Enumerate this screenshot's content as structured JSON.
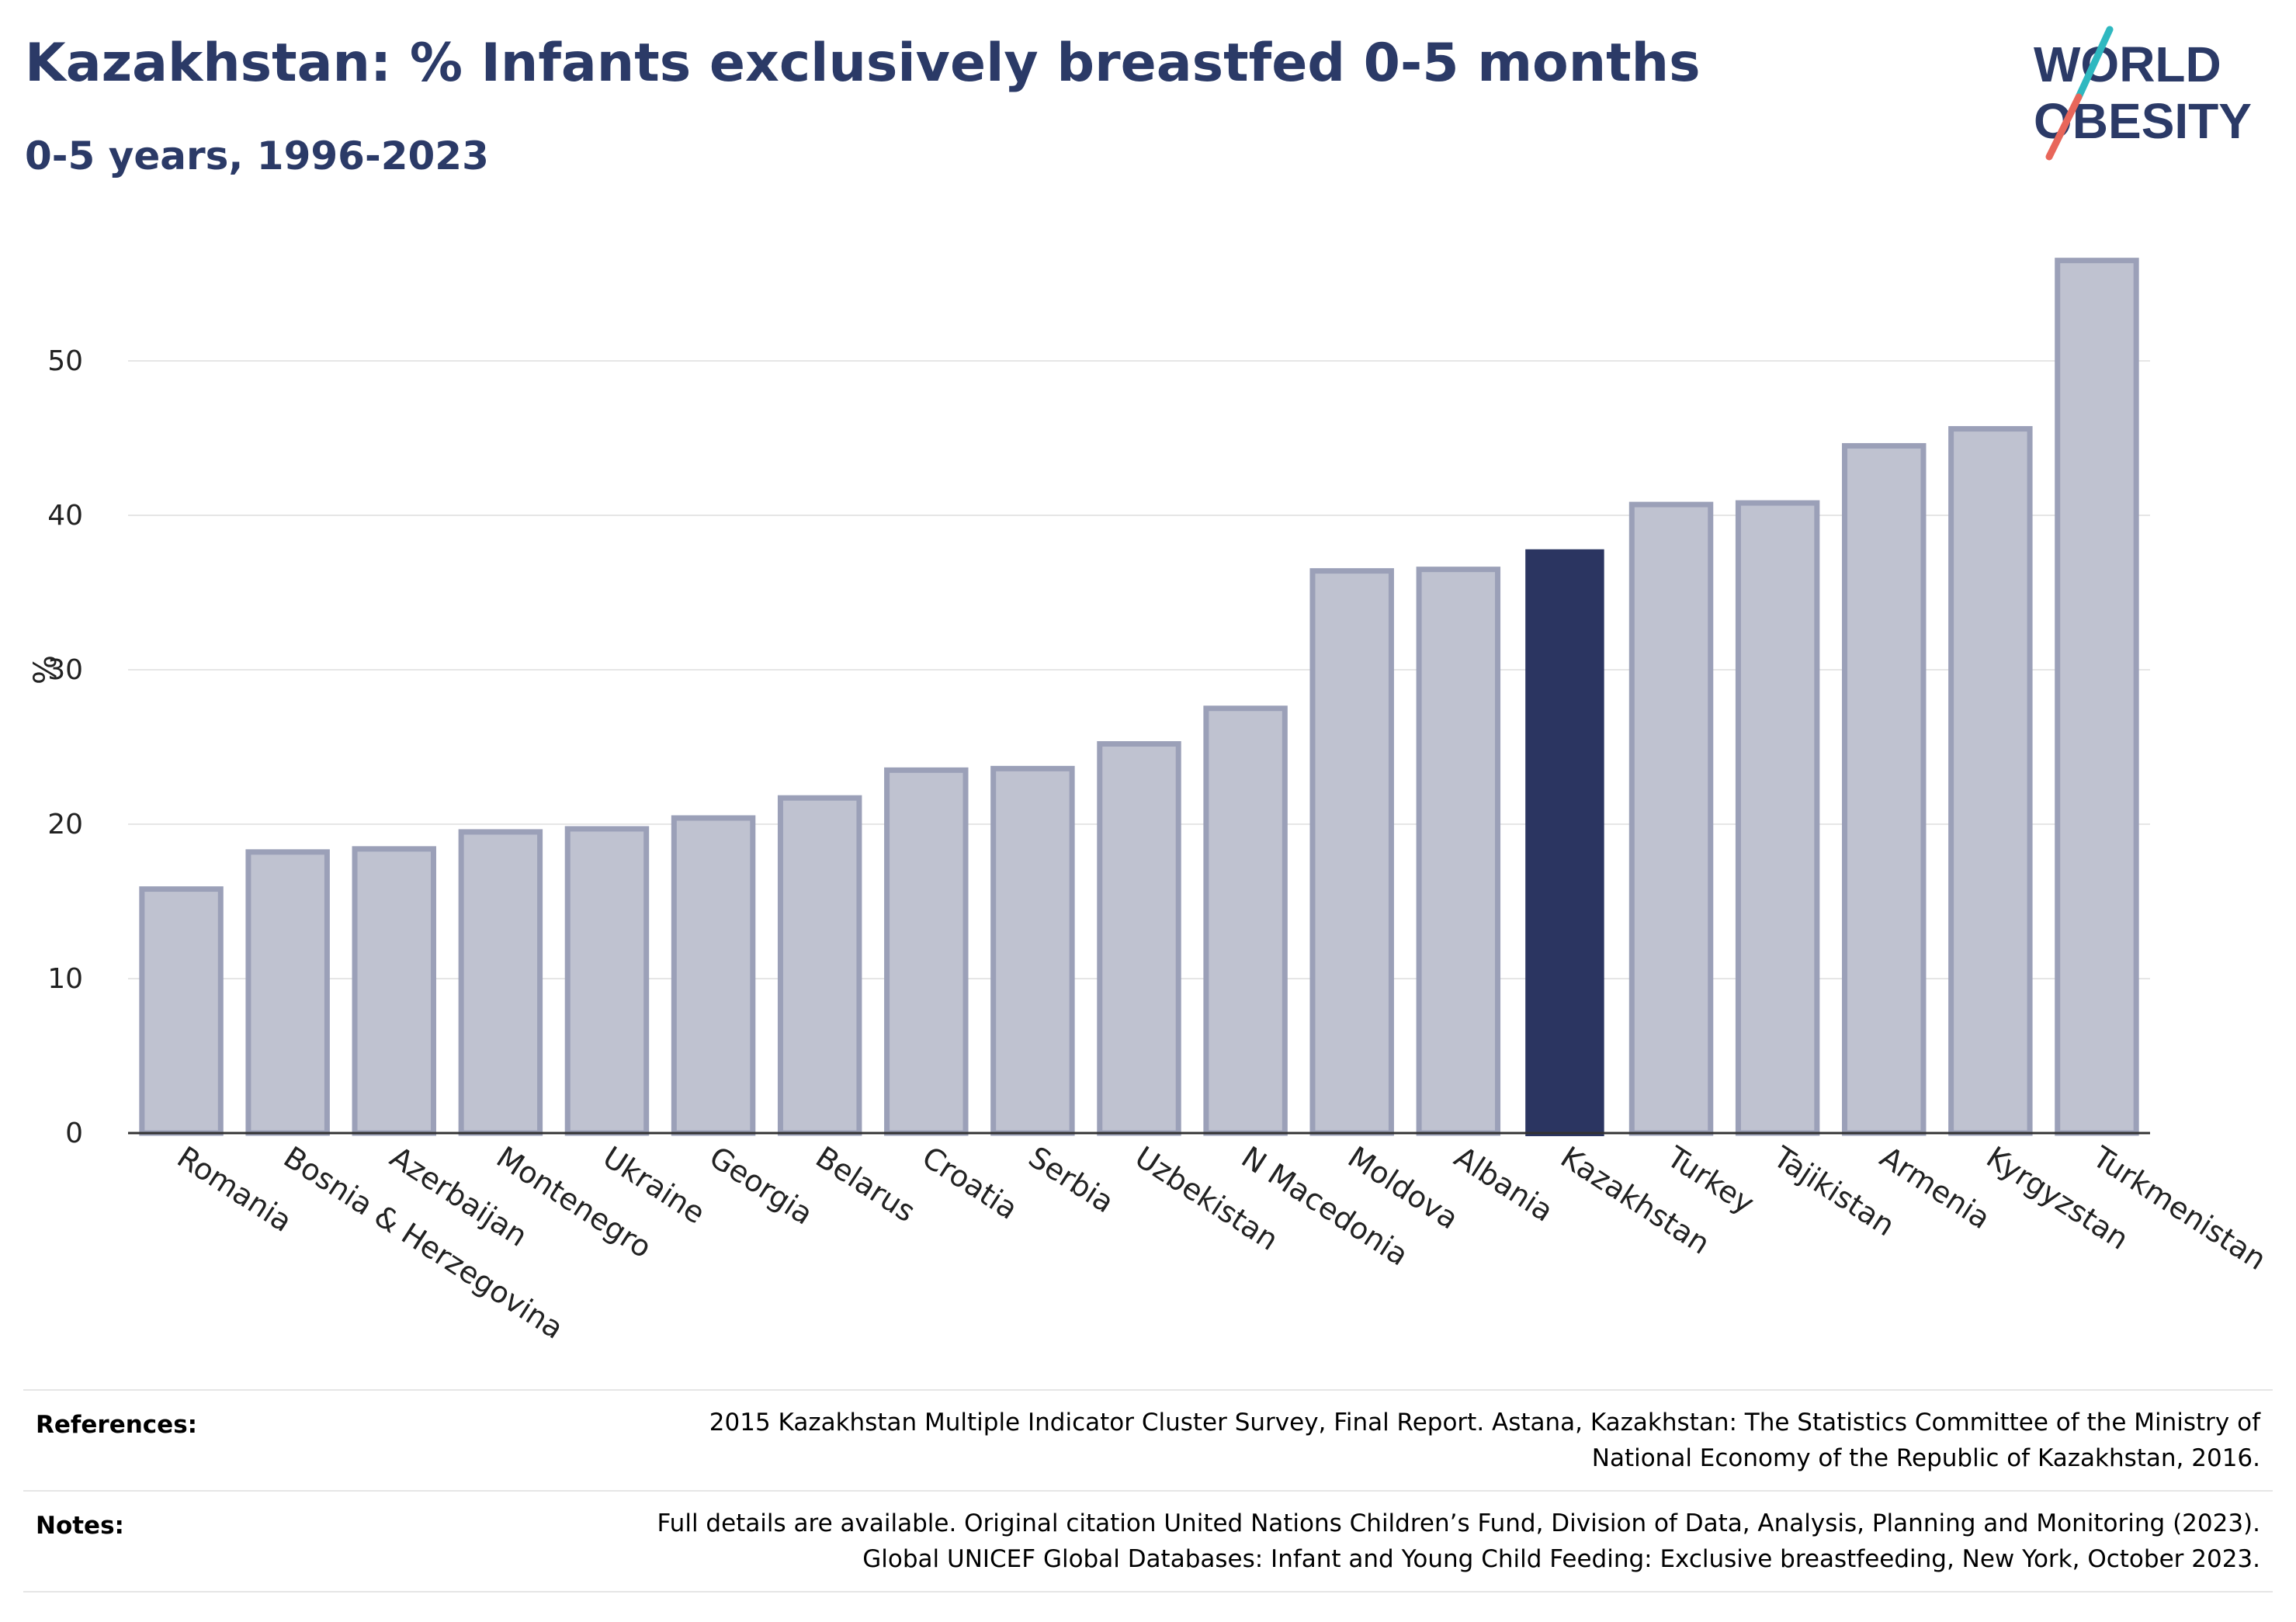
{
  "header": {
    "title": "Kazakhstan: % Infants exclusively breastfed 0-5 months",
    "subtitle": "0-5 years, 1996-2023"
  },
  "logo": {
    "line1": "WORLD",
    "line2": "OBESITY"
  },
  "colors": {
    "highlight": "#2b3561",
    "bar_fill": "#bfc2d0",
    "bar_stroke": "#9ba0b8",
    "title": "#2b3a67",
    "grid": "#e6e6e6",
    "logo_teal": "#2fb8c0",
    "logo_coral": "#e8665a"
  },
  "chart_data": {
    "type": "bar",
    "ylabel": "%",
    "ylim": [
      0,
      58
    ],
    "yticks": [
      0,
      10,
      20,
      30,
      40,
      50
    ],
    "grid": true,
    "highlight": "Kazakhstan",
    "categories": [
      "Romania",
      "Bosnia & Herzegovina",
      "Azerbaijan",
      "Montenegro",
      "Ukraine",
      "Georgia",
      "Belarus",
      "Croatia",
      "Serbia",
      "Uzbekistan",
      "N Macedonia",
      "Moldova",
      "Albania",
      "Kazakhstan",
      "Turkey",
      "Tajikistan",
      "Armenia",
      "Kyrgyzstan",
      "Turkmenistan"
    ],
    "values": [
      15.8,
      18.2,
      18.4,
      19.5,
      19.7,
      20.4,
      21.7,
      23.5,
      23.6,
      25.2,
      27.5,
      36.4,
      36.5,
      37.8,
      40.7,
      40.8,
      44.5,
      45.6,
      56.5
    ]
  },
  "references": {
    "label": "References:",
    "lines": [
      "2015 Kazakhstan Multiple Indicator Cluster Survey, Final Report. Astana, Kazakhstan: The Statistics Committee of the Ministry of",
      "National Economy of the Republic of Kazakhstan, 2016."
    ]
  },
  "notes": {
    "label": "Notes:",
    "lines": [
      "Full details are available. Original citation United Nations Children’s Fund, Division of Data, Analysis, Planning and Monitoring (2023).",
      "Global UNICEF Global Databases: Infant and Young Child Feeding: Exclusive breastfeeding, New York, October 2023."
    ]
  }
}
